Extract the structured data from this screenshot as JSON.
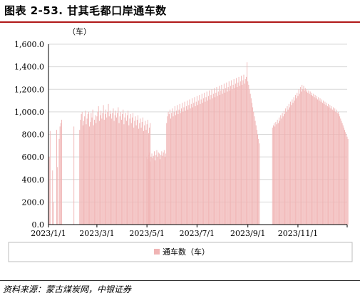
{
  "header": {
    "title": "图表 2-53. 甘其毛都口岸通车数"
  },
  "footer": {
    "source": "资料来源：蒙古煤炭网，中银证券"
  },
  "colors": {
    "bar": "#f0b4b4",
    "grid": "#d9d9d9",
    "title_rule": "#b01818"
  },
  "chart_data": {
    "type": "bar",
    "title": "",
    "ylabel": "（车）",
    "xlabel": "",
    "ylim": [
      0,
      1600
    ],
    "yticks": [
      0,
      200,
      400,
      600,
      800,
      1000,
      1200,
      1400,
      1600
    ],
    "ytick_labels": [
      "0.0",
      "200.0",
      "400.0",
      "600.0",
      "800.0",
      "1,000.0",
      "1,200.0",
      "1,400.0",
      "1,600.0"
    ],
    "xlim": [
      "2023-01-01",
      "2023-12-31"
    ],
    "xticks": [
      "2023-01-01",
      "2023-03-01",
      "2023-05-01",
      "2023-07-01",
      "2023-09-01",
      "2023-11-01"
    ],
    "xtick_labels": [
      "2023/1/1",
      "2023/3/1",
      "2023/5/1",
      "2023/7/1",
      "2023/9/1",
      "2023/11/1"
    ],
    "grid": true,
    "legend": {
      "position": "bottom"
    },
    "series": [
      {
        "name": "通车数（车）",
        "segments": [
          {
            "start": "2023-01-01",
            "values": [
              850,
              600,
              830,
              0,
              0,
              480,
              200,
              0,
              0,
              0,
              840,
              510,
              0,
              760,
              870,
              900,
              930,
              0,
              0,
              0,
              0,
              0,
              0,
              0,
              0,
              0,
              0,
              0,
              0,
              0,
              0,
              870,
              0,
              0,
              0,
              0,
              0,
              0,
              840,
              930,
              980,
              1000,
              880,
              920,
              960,
              1010,
              890,
              940,
              980,
              1000,
              870,
              910,
              990,
              950,
              1020,
              880,
              930,
              970,
              900,
              960,
              1000,
              1050,
              920,
              970,
              1010,
              940,
              990,
              1060,
              930,
              980,
              1020,
              950,
              1000,
              1070,
              960,
              1010,
              980,
              940,
              990,
              1030,
              920,
              970,
              1010,
              950,
              990,
              1040,
              900,
              960,
              1000,
              930,
              980,
              1020,
              890,
              950,
              990,
              920,
              970,
              1010,
              880,
              940,
              980,
              900,
              950,
              990,
              860,
              920,
              960,
              880,
              930,
              970,
              850,
              900,
              940,
              860,
              910,
              950,
              830,
              880,
              920,
              840,
              890,
              930,
              810,
              860,
              900
            ]
          },
          {
            "start": "2023-05-01",
            "values": [
              600,
              580,
              620,
              640,
              560,
              600,
              630,
              590,
              610,
              650,
              570,
              620,
              660,
              600,
              640,
              630,
              580,
              620,
              650,
              610,
              640,
              660,
              600,
              630
            ]
          },
          {
            "start": "2023-05-25",
            "values": [
              900,
              960,
              1000,
              980,
              1020,
              940,
              990,
              1030,
              960,
              1000,
              1050,
              970,
              1010,
              1060,
              980,
              1020,
              1070,
              990,
              1030,
              1080,
              1000,
              1040,
              1090,
              1010,
              1050,
              1100,
              1020,
              1060,
              1110,
              1030,
              1070,
              1120,
              1040,
              1080,
              1130,
              1050,
              1090,
              1140,
              1060,
              1100,
              1150,
              1070,
              1110,
              1160,
              1080,
              1120,
              1170,
              1090,
              1130,
              1180,
              1100,
              1140,
              1190,
              1110,
              1150,
              1200,
              1120,
              1160,
              1210,
              1130,
              1170,
              1220,
              1140,
              1180,
              1230,
              1150,
              1190,
              1240,
              1160,
              1200,
              1250,
              1170,
              1210,
              1260,
              1180,
              1220,
              1270,
              1190,
              1230,
              1280,
              1200,
              1240,
              1290,
              1210,
              1250,
              1300,
              1220,
              1260,
              1310,
              1230,
              1270,
              1320,
              1240,
              1280,
              1330,
              1250,
              1290,
              1310,
              1440,
              1270,
              1240,
              1200,
              1160,
              1120,
              1080,
              1040,
              1000,
              960,
              920,
              880,
              840,
              800,
              760,
              720
            ]
          },
          {
            "start": "2023-10-01",
            "values": [
              860,
              880,
              900,
              870,
              910,
              890,
              930,
              900,
              950,
              920,
              970,
              940,
              990,
              960,
              1010,
              980,
              1030,
              1000,
              1050,
              1020,
              1070,
              1040,
              1090,
              1060,
              1110,
              1080,
              1130,
              1100,
              1150,
              1120,
              1170,
              1140,
              1200,
              1160,
              1220,
              1180,
              1240,
              1200,
              1230,
              1190,
              1210,
              1180,
              1200,
              1170,
              1190,
              1160,
              1180,
              1150,
              1170,
              1140,
              1160,
              1130,
              1150,
              1120,
              1140,
              1110,
              1130,
              1100,
              1120,
              1090,
              1110,
              1080,
              1100,
              1070,
              1090,
              1060,
              1080,
              1050,
              1070,
              1040,
              1060,
              1030,
              1050,
              1020,
              1040,
              1010,
              1030,
              1000,
              1020,
              990,
              1000,
              980,
              960,
              940,
              920,
              900,
              880,
              860,
              840,
              820,
              800,
              780,
              760
            ]
          }
        ]
      }
    ]
  }
}
